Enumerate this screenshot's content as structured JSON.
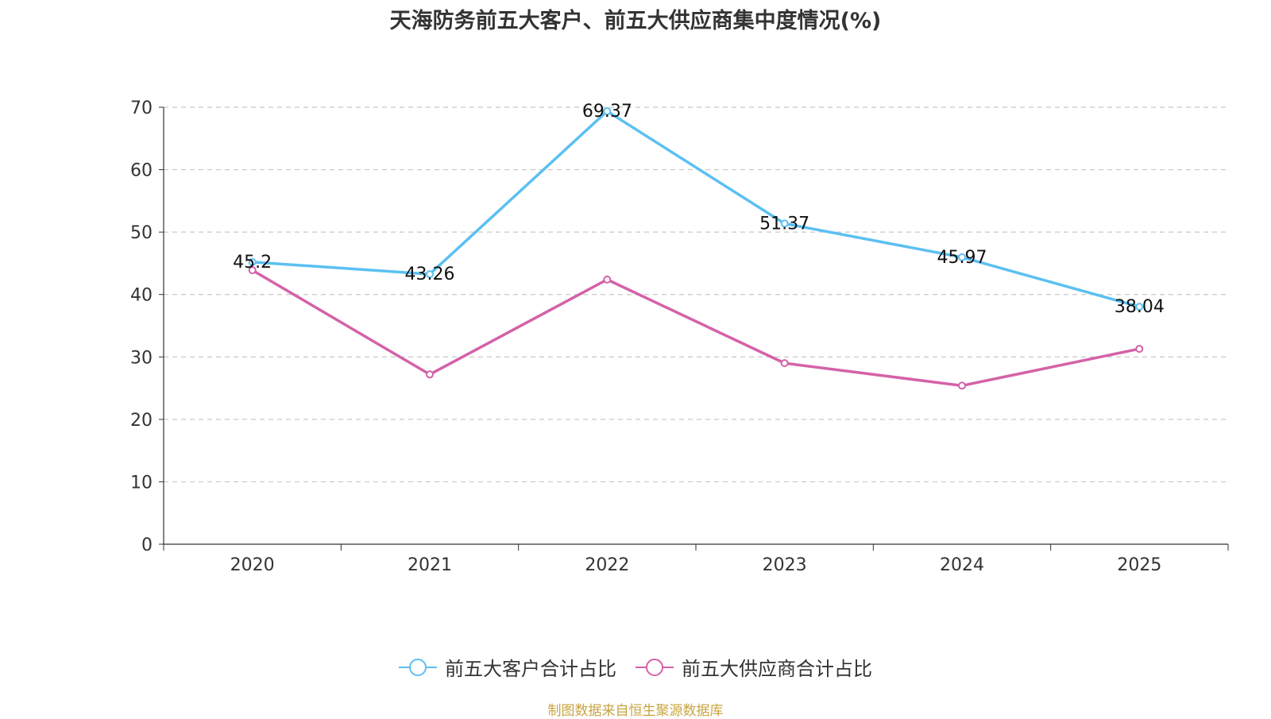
{
  "chart_data": {
    "type": "line",
    "title": "天海防务前五大客户、前五大供应商集中度情况(%)",
    "categories": [
      "2020",
      "2021",
      "2022",
      "2023",
      "2024",
      "2025"
    ],
    "series": [
      {
        "name": "前五大客户合计占比",
        "color": "#5bc0f2",
        "values": [
          45.2,
          43.26,
          69.37,
          51.37,
          45.97,
          38.04
        ],
        "labels_shown": true
      },
      {
        "name": "前五大供应商合计占比",
        "color": "#d462a8",
        "values": [
          43.9,
          27.2,
          42.4,
          29.0,
          25.4,
          31.3
        ],
        "labels_shown": false
      }
    ],
    "ylim": [
      0,
      70
    ],
    "yticks": [
      0,
      10,
      20,
      30,
      40,
      50,
      60,
      70
    ],
    "grid": true,
    "legend_position": "bottom-center"
  },
  "source": "制图数据来自恒生聚源数据库"
}
